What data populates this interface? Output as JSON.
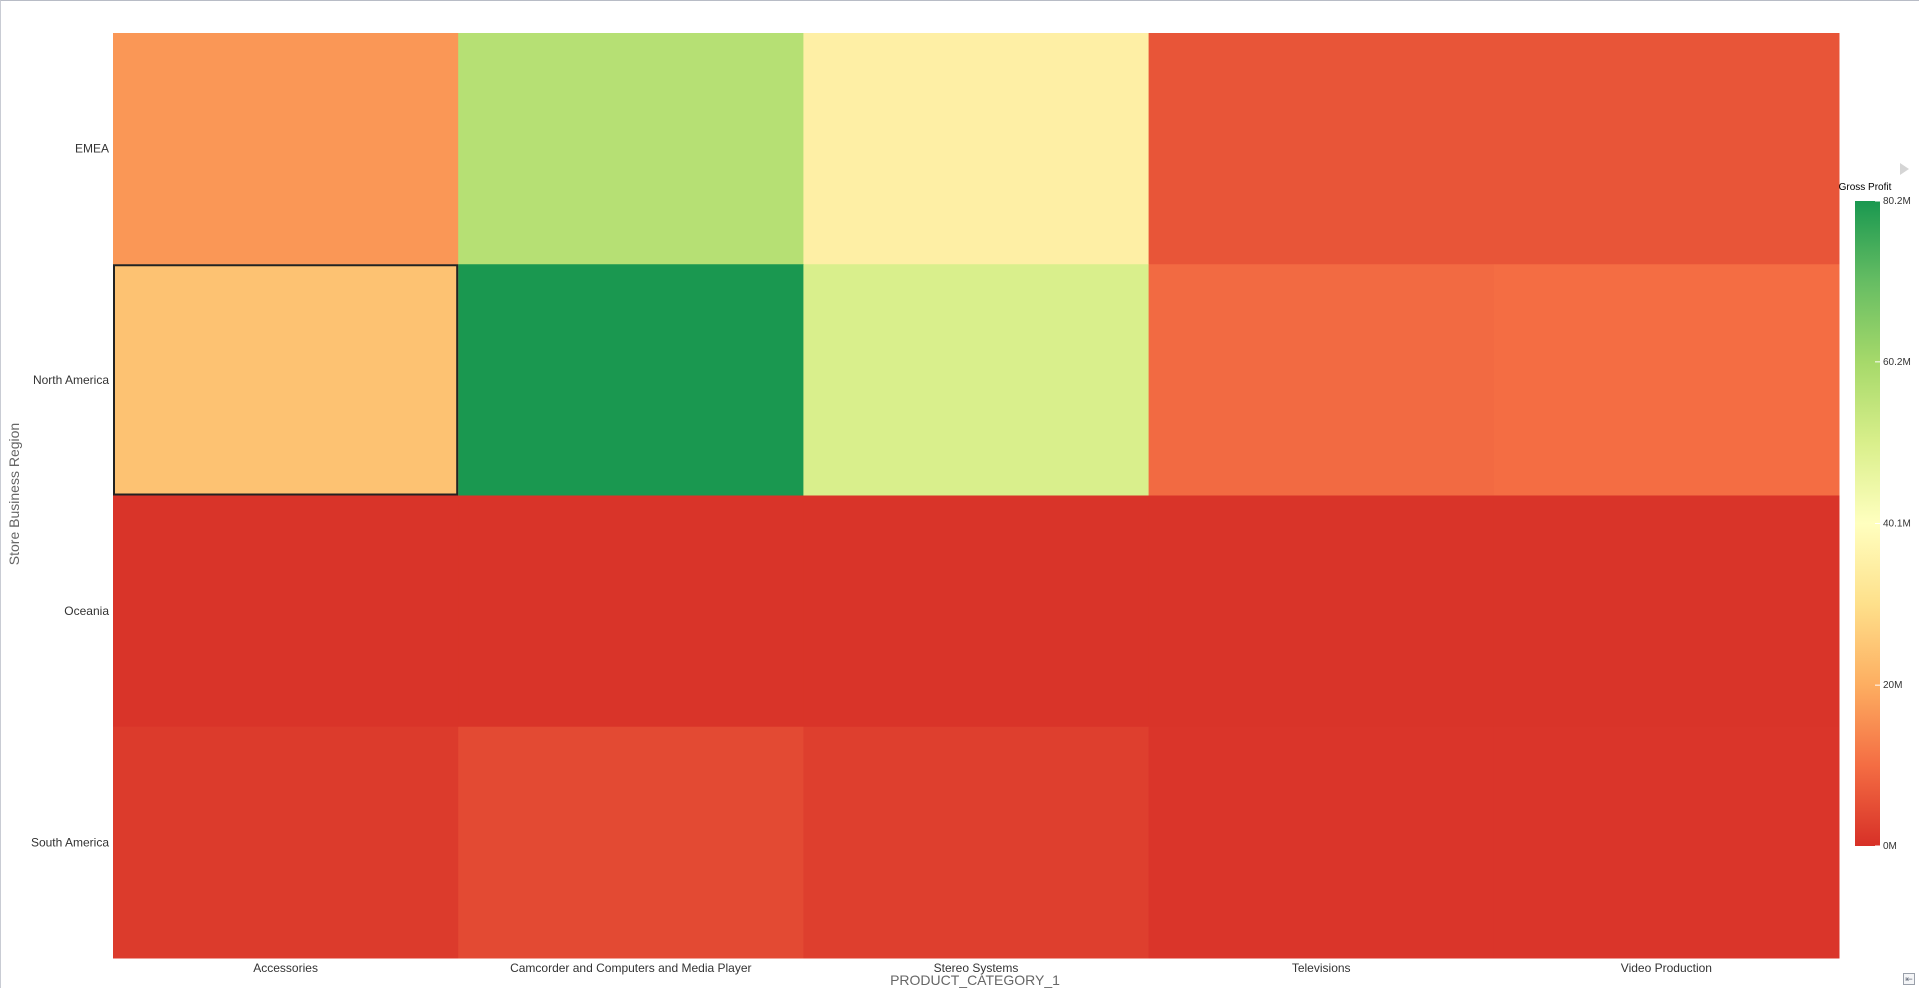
{
  "chart_data": {
    "type": "heatmap",
    "x_categories": [
      "Accessories",
      "Camcorder and Computers and Media Player",
      "Stereo Systems",
      "Televisions",
      "Video Production"
    ],
    "y_categories": [
      "EMEA",
      "North America",
      "Oceania",
      "South America"
    ],
    "values": [
      [
        16500000,
        57000000,
        35000000,
        6000000,
        6000000
      ],
      [
        24000000,
        80200000,
        50000000,
        9500000,
        10000000
      ],
      [
        600000,
        600000,
        600000,
        600000,
        600000
      ],
      [
        1800000,
        4300000,
        2500000,
        900000,
        900000
      ]
    ],
    "xlabel": "PRODUCT_CATEGORY_1",
    "ylabel": "Store Business Region",
    "colorbar": {
      "title": "Gross Profit",
      "min": 0,
      "max": 80200000,
      "ticks": [
        {
          "value": 0,
          "label": "0M"
        },
        {
          "value": 20000000,
          "label": "20M"
        },
        {
          "value": 40100000,
          "label": "40.1M"
        },
        {
          "value": 60200000,
          "label": "60.2M"
        },
        {
          "value": 80200000,
          "label": "80.2M"
        }
      ],
      "colorscale": [
        "#d73027",
        "#f46d43",
        "#fdae61",
        "#fee08b",
        "#ffffbf",
        "#d9ef8b",
        "#a6d96a",
        "#66bd63",
        "#1a9850"
      ],
      "placement": "right"
    },
    "selected_cell": {
      "row": "North America",
      "column": "Accessories"
    }
  },
  "icons": {
    "legend_arrow": "play-right-icon",
    "corner": "collapse-corner-icon"
  }
}
